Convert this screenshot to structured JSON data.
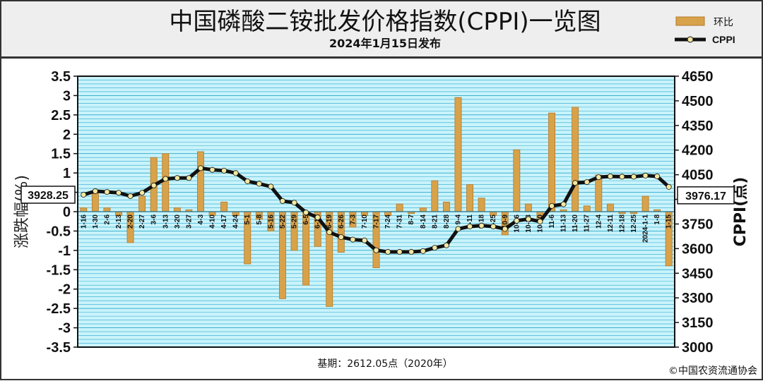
{
  "header": {
    "title": "中国磷酸二铵批发价格指数(CPPI)一览图",
    "subtitle": "2024年1月15日发布"
  },
  "footer": {
    "base": "基期：2612.05点（2020年）",
    "copyright": "©中国农资流通协会"
  },
  "colors": {
    "bar": "#d8a24a",
    "bar_edge": "#b37a2a",
    "line": "#111111",
    "marker": "#f2e7a0",
    "plot_bg": "#c9f3fb",
    "grid": "#2aa8cc",
    "header_bg": "#eeeeee"
  },
  "chart_data": {
    "type": "bar",
    "legend": [
      "环比",
      "CPPI"
    ],
    "legend_position": "top-right",
    "ylabel": "涨跌幅(%)",
    "y2label": "CPPI(点)",
    "ylim": [
      -3.5,
      3.5
    ],
    "y_ticks": [
      "3.5",
      "3",
      "2.5",
      "2",
      "1.5",
      "1",
      "0.5",
      "0",
      "-0.5",
      "-1",
      "-1.5",
      "-2",
      "-2.5",
      "-3",
      "-3.5"
    ],
    "y2lim": [
      3000,
      4650
    ],
    "y2_ticks": [
      "4650",
      "4500",
      "4350",
      "4200",
      "4050",
      "3900",
      "3750",
      "3600",
      "3450",
      "3300",
      "3150",
      "3000"
    ],
    "grid": true,
    "categories": [
      "1-16",
      "1-30",
      "2-6",
      "2-13",
      "2-20",
      "2-27",
      "3-6",
      "3-13",
      "3-20",
      "3-27",
      "4-3",
      "4-10",
      "4-17",
      "4-24",
      "5-1",
      "5-8",
      "5-16",
      "5-22",
      "5-29",
      "6-5",
      "6-12",
      "6-19",
      "6-26",
      "7-3",
      "7-10",
      "7-17",
      "7-24",
      "7-31",
      "8-7",
      "8-14",
      "8-21",
      "8-28",
      "9-4",
      "9-11",
      "9-18",
      "9-25",
      "10-9",
      "10-16",
      "10-23",
      "10-30",
      "11-6",
      "11-13",
      "11-20",
      "11-27",
      "12-4",
      "12-11",
      "12-18",
      "12-25",
      "2024-1-1",
      "1-8",
      "1-15"
    ],
    "series": [
      {
        "name": "环比",
        "values": [
          0.1,
          0.5,
          0.1,
          -0.1,
          -0.8,
          0.4,
          1.4,
          1.5,
          0.1,
          0.05,
          1.55,
          -0.1,
          0.25,
          -0.1,
          -1.35,
          -0.2,
          -0.5,
          -2.25,
          -1.0,
          -1.9,
          -0.9,
          -2.45,
          -1.05,
          -0.4,
          -0.1,
          -1.45,
          -0.1,
          0.2,
          -0.05,
          0.1,
          0.8,
          0.25,
          2.95,
          0.7,
          0.35,
          -0.1,
          -0.6,
          1.6,
          0.2,
          -0.2,
          2.55,
          0.05,
          2.7,
          0.15,
          0.95,
          0.2,
          -0.05,
          -0.05,
          0.4,
          0.05,
          -1.4
        ]
      },
      {
        "name": "CPPI",
        "values": [
          3928.25,
          3950,
          3945,
          3940,
          3920,
          3940,
          3985,
          4025,
          4030,
          4030,
          4090,
          4080,
          4075,
          4060,
          4010,
          3995,
          3978,
          3890,
          3880,
          3820,
          3790,
          3700,
          3670,
          3655,
          3650,
          3590,
          3580,
          3580,
          3580,
          3585,
          3605,
          3620,
          3720,
          3735,
          3740,
          3735,
          3720,
          3770,
          3780,
          3765,
          3860,
          3870,
          4000,
          4005,
          4035,
          4040,
          4038,
          4038,
          4045,
          4040,
          3976.17
        ]
      }
    ],
    "annotations": [
      {
        "label": "3928.25",
        "target": "first"
      },
      {
        "label": "3976.17",
        "target": "last"
      }
    ]
  }
}
